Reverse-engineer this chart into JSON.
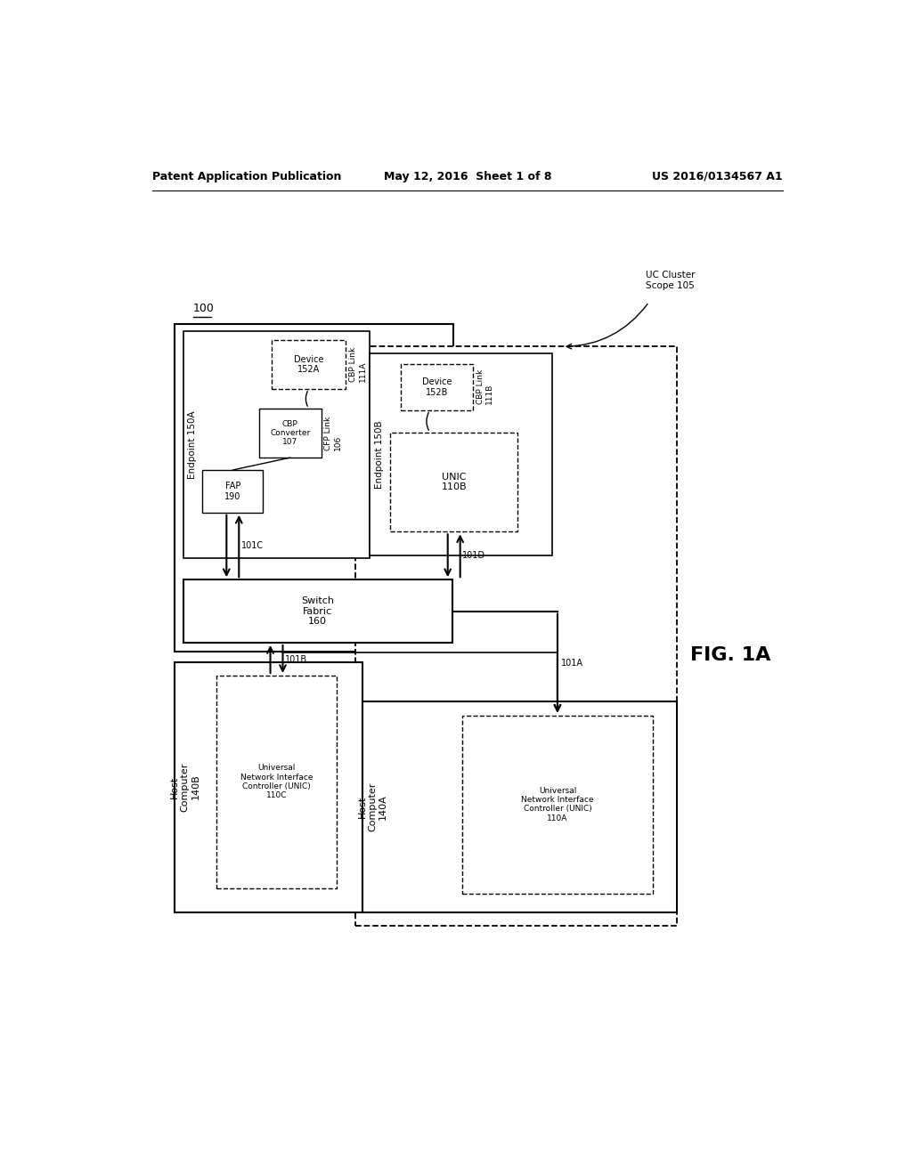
{
  "bg_color": "#ffffff",
  "header_left": "Patent Application Publication",
  "header_center": "May 12, 2016  Sheet 1 of 8",
  "header_right": "US 2016/0134567 A1",
  "fig_label": "FIG. 1A",
  "diagram_number": "100"
}
